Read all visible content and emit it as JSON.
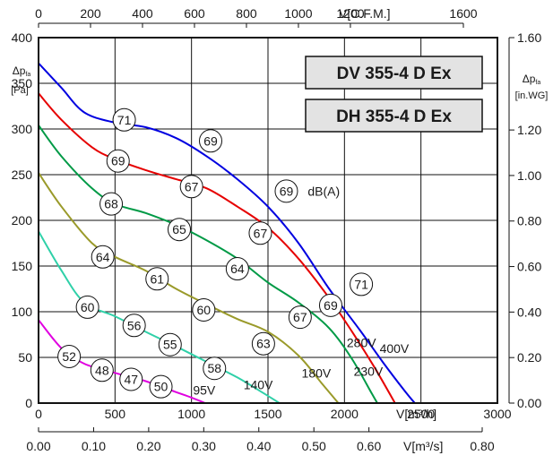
{
  "chart_data": {
    "type": "line",
    "models": [
      "DV 355-4 D Ex",
      "DH 355-4 D Ex"
    ],
    "x_primary": {
      "label": "V[m³/h]",
      "range": [
        0,
        3000
      ],
      "ticks": [
        "0",
        "500",
        "1000",
        "1500",
        "2000",
        "2500",
        "3000"
      ]
    },
    "x_top": {
      "label": "V[C.F.M.]",
      "range": [
        0,
        1765.7
      ],
      "ticks": [
        "0",
        "200",
        "400",
        "600",
        "800",
        "1000",
        "1200",
        "1600"
      ]
    },
    "x_bottom": {
      "label": "V[m³/s]",
      "range": [
        0,
        0.8333
      ],
      "ticks": [
        "0.00",
        "0.10",
        "0.20",
        "0.30",
        "0.40",
        "0.50",
        "0.60",
        "0.80"
      ]
    },
    "y_left": {
      "label": "Δp",
      "label_sub": "fa",
      "unit": "[Pa]",
      "range": [
        0,
        400
      ],
      "ticks": [
        "0",
        "50",
        "100",
        "150",
        "200",
        "250",
        "300",
        "350",
        "400"
      ]
    },
    "y_right": {
      "label": "Δp",
      "label_sub": "fa",
      "unit": "[in.WG]",
      "range": [
        0,
        1.606
      ],
      "ticks": [
        "0.00",
        "0.20",
        "0.40",
        "0.60",
        "0.80",
        "1.00",
        "1.20",
        "1.60"
      ]
    },
    "grid": true,
    "sound_unit": "dB(A)",
    "series": [
      {
        "name": "400V",
        "color": "#0000e0",
        "points": [
          [
            0,
            372
          ],
          [
            150,
            345
          ],
          [
            300,
            318
          ],
          [
            500,
            307
          ],
          [
            700,
            302
          ],
          [
            900,
            290
          ],
          [
            1100,
            270
          ],
          [
            1300,
            245
          ],
          [
            1500,
            215
          ],
          [
            1700,
            175
          ],
          [
            1900,
            125
          ],
          [
            2100,
            80
          ],
          [
            2250,
            45
          ],
          [
            2400,
            12
          ],
          [
            2460,
            0
          ]
        ],
        "sound_markers": [
          {
            "x": 560,
            "y": 310,
            "label": "71"
          },
          {
            "x": 1125,
            "y": 287,
            "label": "69"
          },
          {
            "x": 1620,
            "y": 232,
            "label": "69"
          },
          {
            "x": 2110,
            "y": 130,
            "label": "71"
          }
        ]
      },
      {
        "name": "280V",
        "color": "#e60000",
        "points": [
          [
            0,
            339
          ],
          [
            150,
            310
          ],
          [
            350,
            280
          ],
          [
            500,
            267
          ],
          [
            700,
            255
          ],
          [
            900,
            245
          ],
          [
            1100,
            235
          ],
          [
            1300,
            215
          ],
          [
            1500,
            192
          ],
          [
            1700,
            158
          ],
          [
            1900,
            115
          ],
          [
            2050,
            78
          ],
          [
            2200,
            38
          ],
          [
            2330,
            0
          ]
        ],
        "sound_markers": [
          {
            "x": 520,
            "y": 265,
            "label": "69"
          },
          {
            "x": 1000,
            "y": 237,
            "label": "67"
          },
          {
            "x": 1450,
            "y": 186,
            "label": "67"
          },
          {
            "x": 1910,
            "y": 107,
            "label": "69"
          }
        ]
      },
      {
        "name": "230V",
        "color": "#009a46",
        "points": [
          [
            0,
            304
          ],
          [
            150,
            270
          ],
          [
            350,
            235
          ],
          [
            500,
            218
          ],
          [
            700,
            208
          ],
          [
            900,
            195
          ],
          [
            1100,
            178
          ],
          [
            1300,
            158
          ],
          [
            1500,
            132
          ],
          [
            1700,
            110
          ],
          [
            1900,
            82
          ],
          [
            2050,
            48
          ],
          [
            2180,
            10
          ],
          [
            2215,
            0
          ]
        ],
        "sound_markers": [
          {
            "x": 475,
            "y": 218,
            "label": "68"
          },
          {
            "x": 920,
            "y": 190,
            "label": "65"
          },
          {
            "x": 1300,
            "y": 147,
            "label": "64"
          },
          {
            "x": 1710,
            "y": 94,
            "label": "67"
          }
        ]
      },
      {
        "name": "180V",
        "color": "#9a9a2a",
        "points": [
          [
            0,
            252
          ],
          [
            150,
            215
          ],
          [
            350,
            175
          ],
          [
            500,
            160
          ],
          [
            700,
            145
          ],
          [
            900,
            125
          ],
          [
            1100,
            108
          ],
          [
            1300,
            92
          ],
          [
            1500,
            78
          ],
          [
            1700,
            52
          ],
          [
            1850,
            22
          ],
          [
            1960,
            0
          ]
        ],
        "sound_markers": [
          {
            "x": 420,
            "y": 160,
            "label": "64"
          },
          {
            "x": 775,
            "y": 136,
            "label": "61"
          },
          {
            "x": 1080,
            "y": 102,
            "label": "60"
          },
          {
            "x": 1470,
            "y": 65,
            "label": "63"
          }
        ]
      },
      {
        "name": "140V",
        "color": "#2fd0a8",
        "points": [
          [
            0,
            188
          ],
          [
            150,
            145
          ],
          [
            300,
            110
          ],
          [
            500,
            95
          ],
          [
            700,
            78
          ],
          [
            900,
            62
          ],
          [
            1100,
            45
          ],
          [
            1300,
            28
          ],
          [
            1460,
            12
          ],
          [
            1575,
            0
          ]
        ],
        "sound_markers": [
          {
            "x": 320,
            "y": 105,
            "label": "60"
          },
          {
            "x": 625,
            "y": 85,
            "label": "56"
          },
          {
            "x": 860,
            "y": 64,
            "label": "55"
          },
          {
            "x": 1150,
            "y": 38,
            "label": "58"
          }
        ]
      },
      {
        "name": "95V",
        "color": "#e000e0",
        "points": [
          [
            0,
            91
          ],
          [
            150,
            60
          ],
          [
            300,
            43
          ],
          [
            500,
            33
          ],
          [
            700,
            24
          ],
          [
            900,
            12
          ],
          [
            1000,
            6
          ],
          [
            1090,
            0
          ]
        ],
        "sound_markers": [
          {
            "x": 200,
            "y": 51,
            "label": "52"
          },
          {
            "x": 415,
            "y": 36,
            "label": "48"
          },
          {
            "x": 605,
            "y": 26,
            "label": "47"
          },
          {
            "x": 800,
            "y": 18,
            "label": "50"
          }
        ]
      }
    ],
    "voltage_labels": [
      {
        "text": "400V",
        "x": 2230,
        "y": 60
      },
      {
        "text": "280V",
        "x": 2015,
        "y": 66
      },
      {
        "text": "230V",
        "x": 2060,
        "y": 35
      },
      {
        "text": "180V",
        "x": 1720,
        "y": 33
      },
      {
        "text": "140V",
        "x": 1340,
        "y": 20
      },
      {
        "text": "95V",
        "x": 1010,
        "y": 14
      }
    ],
    "sound_unit_label_pos": {
      "x": 1760,
      "y": 232
    }
  }
}
